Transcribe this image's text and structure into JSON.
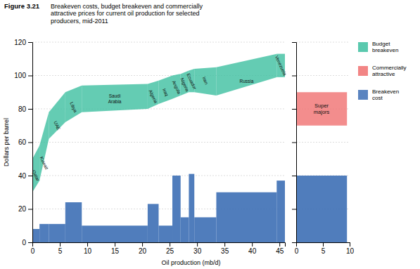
{
  "chart_data": [
    {
      "type": "bar",
      "title": "Figure 3.21",
      "subtitle": "Breakeven costs, budget breakeven and commercially\nattractive prices for current oil production for selected\nproducers, mid-2011",
      "xlabel": "Oil production (mb/d)",
      "ylabel": "Dollars per barrel",
      "categories": [
        "Qatar",
        "Kuwait",
        "UAE",
        "Libya",
        "Saudi\nArabia",
        "Algeria",
        "Iraq",
        "Angola",
        "Nigeria",
        "Ecuador",
        "Iran",
        "Russia",
        "Venezuela"
      ],
      "bins": [
        0.0,
        1.3,
        3.0,
        6.0,
        9.0,
        21.0,
        23.0,
        25.5,
        27.0,
        28.5,
        29.5,
        33.5,
        44.5,
        46.0
      ],
      "xlim": [
        0,
        46
      ],
      "xticks": [
        0,
        5,
        10,
        15,
        20,
        25,
        30,
        35,
        40,
        45
      ],
      "ylim": [
        0,
        120
      ],
      "yticks": [
        0,
        20,
        40,
        60,
        80,
        100,
        120
      ],
      "grid": true,
      "legend": "right",
      "series": [
        {
          "name": "Budget\nbreakeven",
          "type": "area",
          "color": "#3dbfa0",
          "low": [
            30,
            37,
            62,
            72,
            78,
            80,
            83,
            86,
            88,
            90,
            90,
            88,
            99
          ],
          "high": [
            50,
            58,
            78,
            90,
            94,
            95,
            97,
            100,
            101,
            103,
            104,
            105,
            113
          ]
        },
        {
          "name": "Breakeven\ncost",
          "type": "bar",
          "color": "#3d6fb5",
          "values": [
            8,
            11,
            11,
            24,
            10,
            23,
            10,
            40,
            15,
            41,
            15,
            30,
            37
          ]
        }
      ]
    },
    {
      "type": "bar",
      "categories": [
        "Super\nmajors"
      ],
      "bins": [
        0.0,
        9.5
      ],
      "xlim": [
        0,
        10
      ],
      "xticks": [
        0,
        5,
        10
      ],
      "ylim": [
        0,
        120
      ],
      "yticks": [
        0,
        20,
        40,
        60,
        80,
        100,
        120
      ],
      "grid": true,
      "tick_labels": "x",
      "series": [
        {
          "name": "Commercially\nattractive",
          "type": "area",
          "color": "#f07070",
          "low": [
            70
          ],
          "high": [
            90
          ]
        },
        {
          "type": "bar",
          "color": "#3d6fb5",
          "values": [
            40
          ]
        }
      ]
    }
  ]
}
